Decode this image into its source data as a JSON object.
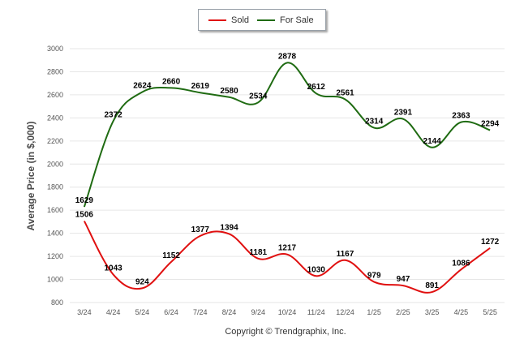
{
  "chart_data": {
    "type": "line",
    "title": "",
    "ylabel": "Average Price (in $,000)",
    "xlabel": "",
    "credit": "Copyright © Trendgraphix, Inc.",
    "categories": [
      "3/24",
      "4/24",
      "5/24",
      "6/24",
      "7/24",
      "8/24",
      "9/24",
      "10/24",
      "11/24",
      "12/24",
      "1/25",
      "2/25",
      "3/25",
      "4/25",
      "5/25"
    ],
    "ylim": [
      800,
      3000
    ],
    "yticks": [
      800,
      1000,
      1200,
      1400,
      1600,
      1800,
      2000,
      2200,
      2400,
      2600,
      2800,
      3000
    ],
    "grid": true,
    "legend": "top-center",
    "series": [
      {
        "name": "Sold",
        "color": "#e01010",
        "values": [
          1506,
          1043,
          924,
          1152,
          1377,
          1394,
          1181,
          1217,
          1030,
          1167,
          979,
          947,
          891,
          1086,
          1272
        ]
      },
      {
        "name": "For Sale",
        "color": "#1f6b12",
        "values": [
          1629,
          2372,
          2624,
          2660,
          2619,
          2580,
          2534,
          2878,
          2612,
          2561,
          2314,
          2391,
          2144,
          2363,
          2294
        ]
      }
    ]
  }
}
